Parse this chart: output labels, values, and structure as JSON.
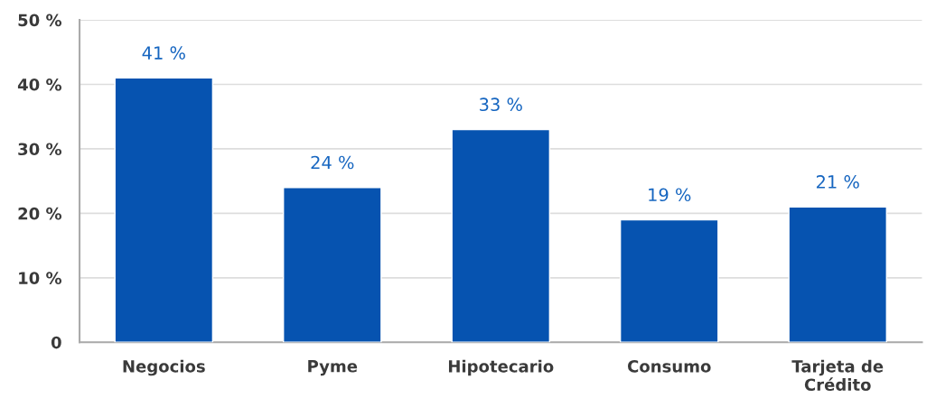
{
  "chart_data": {
    "type": "bar",
    "categories": [
      "Negocios",
      "Pyme",
      "Hipotecario",
      "Consumo",
      "Tarjeta de\nCrédito"
    ],
    "values": [
      41,
      24,
      33,
      19,
      21
    ],
    "value_labels": [
      "41 %",
      "24 %",
      "33 %",
      "19 %",
      "21 %"
    ],
    "color": "#0653b0",
    "ylim": [
      0,
      50
    ],
    "yticks": [
      {
        "value": 0,
        "label": "0"
      },
      {
        "value": 10,
        "label": "10 %"
      },
      {
        "value": 20,
        "label": "20 %"
      },
      {
        "value": 30,
        "label": "30 %"
      },
      {
        "value": 40,
        "label": "40 %"
      },
      {
        "value": 50,
        "label": "50 %"
      }
    ],
    "grid": "y",
    "legend": false
  }
}
